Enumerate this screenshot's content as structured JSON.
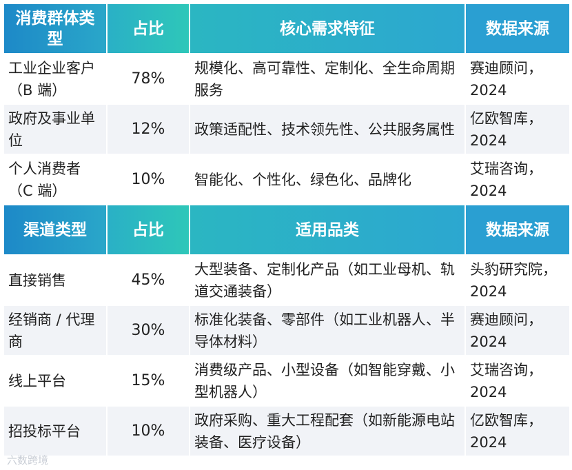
{
  "consumer_table": {
    "headers": [
      "消费群体类型",
      "占比",
      "核心需求特征",
      "数据来源"
    ],
    "rows": [
      {
        "type": "工业企业客户（B 端）",
        "share": "78%",
        "need": "规模化、高可靠性、定制化、全生命周期服务",
        "source": "赛迪顾问，2024"
      },
      {
        "type": "政府及事业单位",
        "share": "12%",
        "need": "政策适配性、技术领先性、公共服务属性",
        "source": "亿欧智库，2024"
      },
      {
        "type": "个人消费者（C 端）",
        "share": "10%",
        "need": "智能化、个性化、绿色化、品牌化",
        "source": "艾瑞咨询，2024"
      }
    ]
  },
  "channel_table": {
    "headers": [
      "渠道类型",
      "占比",
      "适用品类",
      "数据来源"
    ],
    "rows": [
      {
        "type": "直接销售",
        "share": "45%",
        "category": "大型装备、定制化产品（如工业母机、轨道交通装备）",
        "source": "头豹研究院，2024"
      },
      {
        "type": "经销商 / 代理商",
        "share": "30%",
        "category": "标准化装备、零部件（如工业机器人、半导体材料）",
        "source": "赛迪顾问，2024"
      },
      {
        "type": "线上平台",
        "share": "15%",
        "category": "消费级产品、小型设备（如智能穿戴、小型机器人）",
        "source": "艾瑞咨询，2024"
      },
      {
        "type": "招投标平台",
        "share": "10%",
        "category": "政府采购、重大工程配套（如新能源电站装备、医疗设备）",
        "source": "亿欧智库，2024"
      }
    ]
  },
  "watermark": "六数跨境"
}
